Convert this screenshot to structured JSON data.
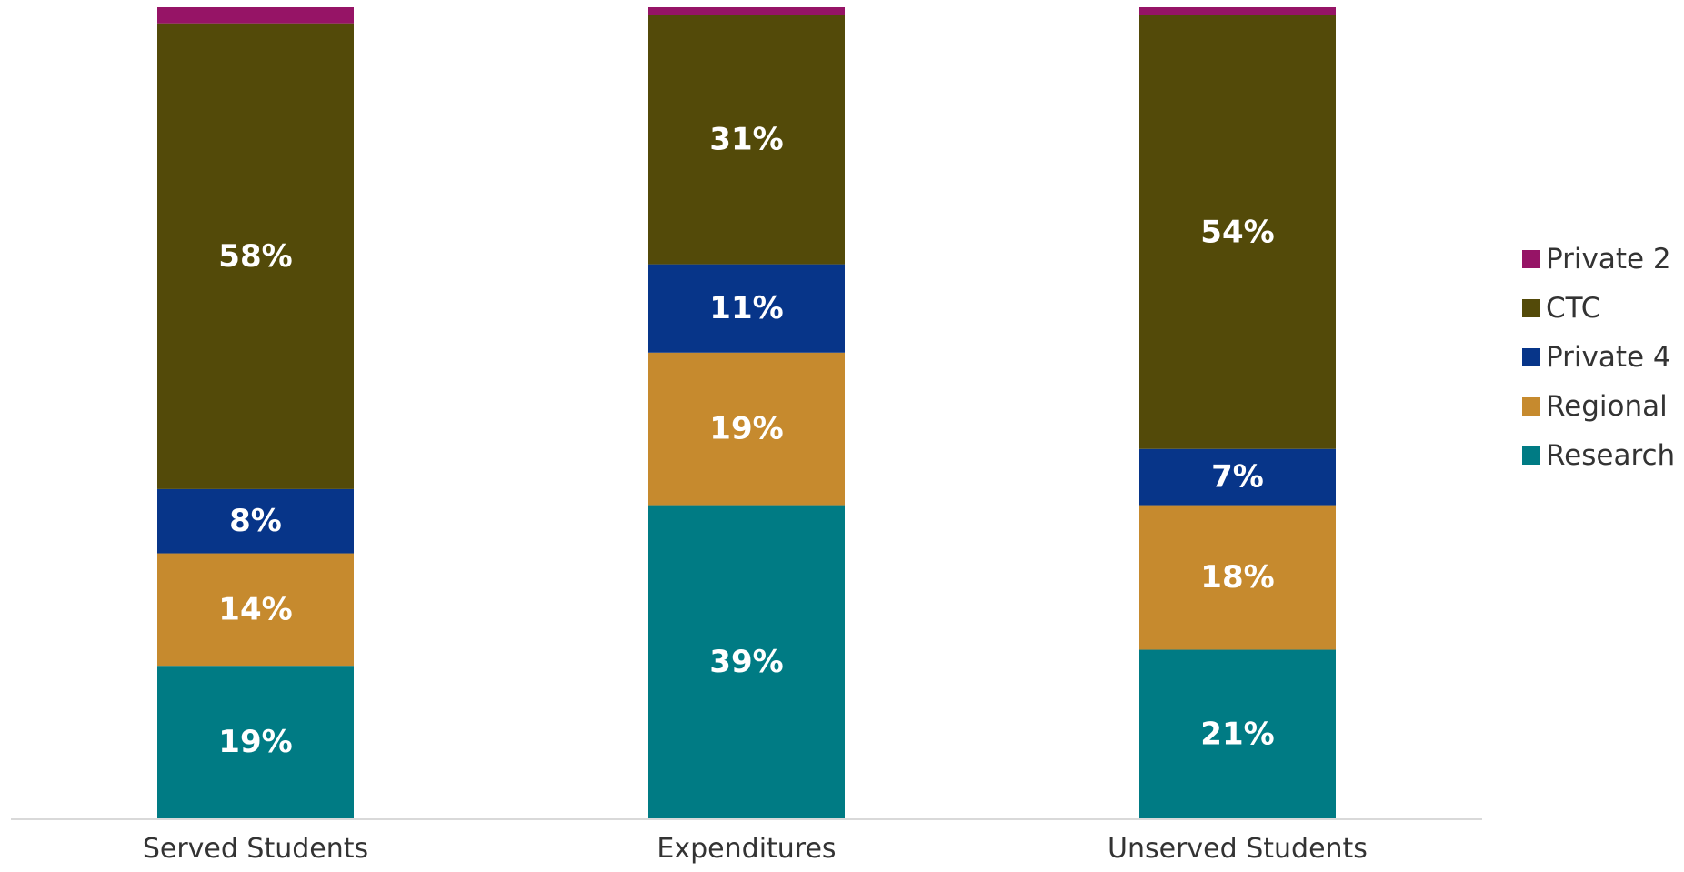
{
  "chart_data": {
    "type": "bar",
    "stacked": true,
    "categories": [
      "Served Students",
      "Expenditures",
      "Unserved Students"
    ],
    "series": [
      {
        "name": "Research",
        "color": "#007B84",
        "values": [
          19,
          39,
          21
        ],
        "labels": [
          "19%",
          "39%",
          "21%"
        ]
      },
      {
        "name": "Regional",
        "color": "#C68A2E",
        "values": [
          14,
          19,
          18
        ],
        "labels": [
          "14%",
          "19%",
          "18%"
        ]
      },
      {
        "name": "Private 4",
        "color": "#073589",
        "values": [
          8,
          11,
          7
        ],
        "labels": [
          "8%",
          "11%",
          "7%"
        ]
      },
      {
        "name": "CTC",
        "color": "#534A09",
        "values": [
          58,
          31,
          54
        ],
        "labels": [
          "58%",
          "31%",
          "54%"
        ]
      },
      {
        "name": "Private 2",
        "color": "#961466",
        "values": [
          2,
          1,
          1
        ],
        "labels": [
          "",
          "",
          ""
        ]
      }
    ],
    "ylim": [
      0,
      100
    ],
    "grid": false,
    "legend_position": "right",
    "legend_order": [
      "Private 2",
      "CTC",
      "Private 4",
      "Regional",
      "Research"
    ],
    "axis_color": "#D9D9D9"
  }
}
